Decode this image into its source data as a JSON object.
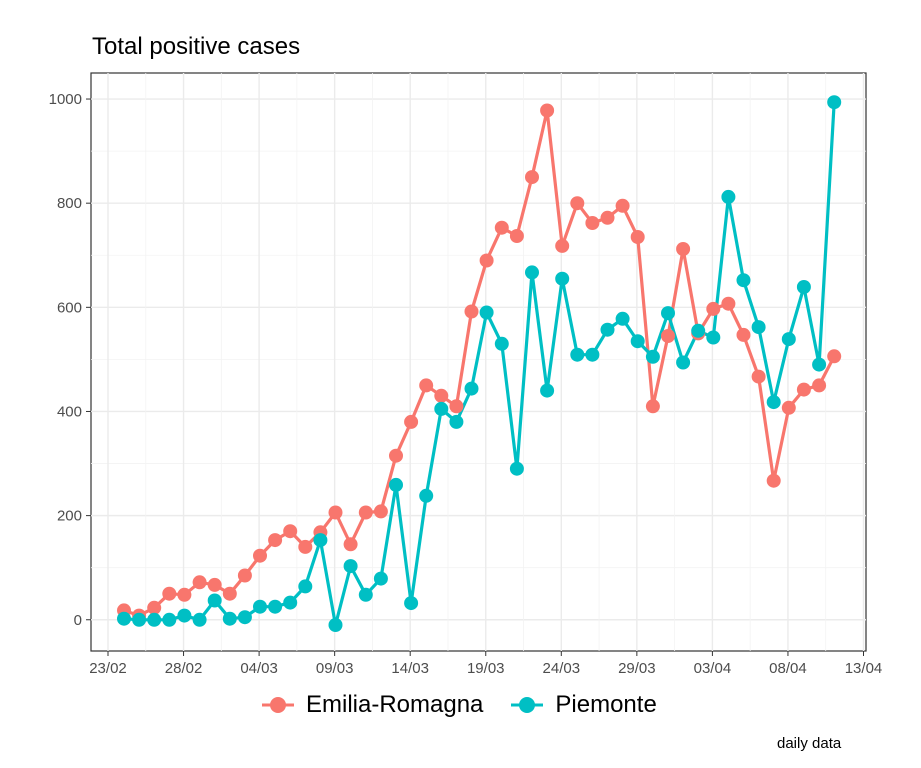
{
  "chart_data": {
    "type": "line",
    "title": "Total positive cases",
    "caption": "daily data",
    "xlabel": "",
    "ylabel": "",
    "x_tick_labels": [
      "23/02",
      "28/02",
      "04/03",
      "09/03",
      "14/03",
      "19/03",
      "24/03",
      "29/03",
      "03/04",
      "08/04",
      "13/04"
    ],
    "y_tick_labels": [
      "0",
      "200",
      "400",
      "600",
      "800",
      "1000"
    ],
    "ylim": [
      -60,
      1050
    ],
    "grid": true,
    "legend_position": "bottom",
    "series": [
      {
        "name": "Emilia-Romagna",
        "color": "#F8766D",
        "values": [
          18,
          8,
          23,
          50,
          48,
          72,
          67,
          50,
          85,
          123,
          153,
          170,
          140,
          168,
          206,
          145,
          206,
          208,
          315,
          380,
          450,
          430,
          410,
          592,
          690,
          753,
          737,
          850,
          978,
          718,
          800,
          762,
          772,
          795,
          735,
          410,
          545,
          712,
          550,
          597,
          607,
          547,
          467,
          267,
          407,
          442,
          450,
          506
        ]
      },
      {
        "name": "Piemonte",
        "color": "#00BFC4",
        "values": [
          2,
          0,
          0,
          0,
          8,
          0,
          37,
          2,
          5,
          25,
          25,
          33,
          64,
          153,
          -10,
          103,
          48,
          79,
          259,
          32,
          238,
          405,
          380,
          444,
          590,
          530,
          290,
          667,
          440,
          655,
          509,
          509,
          557,
          578,
          535,
          505,
          589,
          494,
          555,
          542,
          812,
          652,
          562,
          418,
          539,
          639,
          490,
          994
        ]
      }
    ]
  }
}
